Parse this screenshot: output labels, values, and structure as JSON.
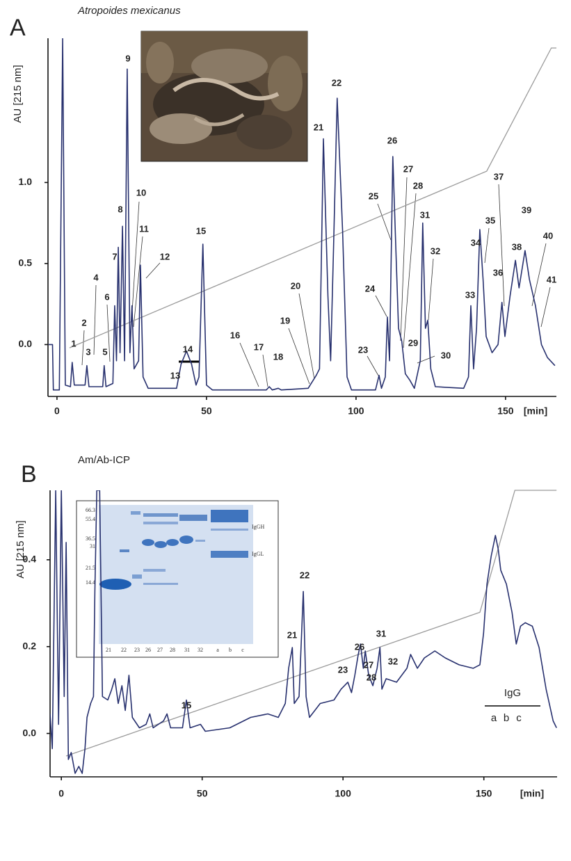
{
  "chart_data": [
    {
      "type": "line",
      "panel": "A",
      "title": "Atropoides mexicanus",
      "ylabel": "AU [215 nm]",
      "xlabel": "[min]",
      "color": "#27306e",
      "x": [
        -2.8,
        -1.5,
        -1.2,
        0.8,
        1.9,
        2.8,
        4.5,
        5.1,
        5.8,
        9.4,
        10,
        10.7,
        15.3,
        15.8,
        16.4,
        18.7,
        19.3,
        19.9,
        20.5,
        21.1,
        21.9,
        22.6,
        23.5,
        24.4,
        25.1,
        25.8,
        27.3,
        27.9,
        28.8,
        30.5,
        40,
        41.5,
        43.3,
        45,
        46.5,
        47.5,
        48.8,
        50,
        52,
        70,
        71,
        72,
        74,
        75,
        84,
        86.7,
        87.8,
        89.1,
        90.6,
        91.5,
        92.5,
        93.7,
        95.5,
        97,
        98.5,
        106.5,
        107.7,
        108.5,
        109.8,
        110.5,
        111.2,
        112.3,
        113.3,
        114.2,
        115.3,
        116.5,
        118,
        119.5,
        121.5,
        122.3,
        123.2,
        124,
        125,
        126.5,
        136,
        137.6,
        138.4,
        139.3,
        140.3,
        141.4,
        142.5,
        143.5,
        145.5,
        147.5,
        148.8,
        149.8,
        151.5,
        153.3,
        154.5,
        156.5,
        158,
        160,
        162,
        164,
        166.5
      ],
      "values": [
        0,
        0,
        -0.28,
        -0.28,
        1.89,
        -0.25,
        -0.26,
        -0.11,
        -0.25,
        -0.25,
        -0.13,
        -0.26,
        -0.26,
        -0.13,
        -0.26,
        -0.24,
        0.24,
        -0.1,
        0.6,
        -0.05,
        0.73,
        -0.1,
        1.7,
        -0.05,
        0.24,
        -0.15,
        -0.1,
        0.49,
        -0.2,
        -0.27,
        -0.27,
        -0.12,
        -0.04,
        -0.12,
        -0.25,
        -0.2,
        0.62,
        -0.25,
        -0.28,
        -0.28,
        -0.26,
        -0.28,
        -0.27,
        -0.28,
        -0.27,
        -0.19,
        -0.15,
        1.27,
        0.3,
        -0.1,
        0.6,
        1.52,
        0.7,
        -0.2,
        -0.28,
        -0.28,
        -0.19,
        -0.27,
        -0.2,
        0.17,
        -0.1,
        1.16,
        0.6,
        0.1,
        0.02,
        -0.18,
        -0.22,
        -0.27,
        -0.1,
        0.75,
        0.1,
        0.15,
        -0.15,
        -0.26,
        -0.27,
        -0.2,
        0.24,
        -0.15,
        0.1,
        0.71,
        0.4,
        0.05,
        -0.05,
        0,
        0.26,
        0.05,
        0.3,
        0.52,
        0.35,
        0.58,
        0.4,
        0.24,
        0,
        -0.08,
        -0.13
      ],
      "gradient": {
        "x": [
          4.2,
          143.7,
          165.3,
          167
        ],
        "values": [
          -0.02,
          1.07,
          1.83,
          1.83
        ]
      },
      "xlim": [
        -3,
        167
      ],
      "ylim": [
        -0.32,
        1.89
      ],
      "xticks": [
        0,
        50,
        100,
        150
      ],
      "yticks": [
        {
          "value": 0,
          "label": "0.0"
        },
        {
          "value": 0.5,
          "label": "0.5"
        },
        {
          "value": 1,
          "label": "1.0"
        }
      ],
      "annotations": [
        "1",
        "2",
        "3",
        "4",
        "5",
        "6",
        "7",
        "8",
        "9",
        "10",
        "11",
        "12",
        "13",
        "14",
        "15",
        "16",
        "17",
        "18",
        "19",
        "20",
        "21",
        "22",
        "23",
        "24",
        "25",
        "26",
        "27",
        "28",
        "29",
        "30",
        "31",
        "32",
        "33",
        "34",
        "35",
        "36",
        "37",
        "38",
        "39",
        "40",
        "41"
      ]
    },
    {
      "type": "line",
      "panel": "B",
      "title": "Am/Ab-ICP",
      "ylabel": "AU [215 nm]",
      "xlabel": "[min]",
      "color": "#27306e",
      "x": [
        -4,
        -3.2,
        -2,
        -1,
        0,
        1,
        1.7,
        2.5,
        3.5,
        4.9,
        6.2,
        7.4,
        8.4,
        9.1,
        10.4,
        11.4,
        11.9,
        12.6,
        13.6,
        14.6,
        16.5,
        17.8,
        19,
        20.2,
        21.5,
        22.7,
        24,
        25.2,
        27.7,
        30.1,
        31.4,
        32.6,
        36.3,
        37.5,
        38.8,
        43,
        44.4,
        45.7,
        49.4,
        51.1,
        59.8,
        67.2,
        73.3,
        77,
        79.5,
        80.7,
        82,
        82.7,
        84.4,
        85.9,
        86.9,
        88.1,
        91.9,
        96.8,
        99.3,
        101.7,
        103,
        104.2,
        105.4,
        106.2,
        107.2,
        107.9,
        109.1,
        110.6,
        112.1,
        113.1,
        113.8,
        115.3,
        119,
        122.7,
        124,
        126.4,
        128.9,
        132.6,
        136.3,
        141.2,
        146.2,
        148.6,
        149.9,
        151.1,
        152.6,
        154.1,
        155.1,
        156,
        158,
        160,
        161.5,
        163,
        164.7,
        167.2,
        169.6,
        172.1,
        174.6,
        175.8
      ],
      "values": [
        0.045,
        -0.035,
        0.56,
        0.021,
        0.56,
        0.085,
        0.44,
        -0.06,
        -0.044,
        -0.092,
        -0.076,
        -0.092,
        -0.035,
        0.037,
        0.069,
        0.085,
        0.327,
        0.56,
        0.56,
        0.085,
        0.077,
        0.1,
        0.126,
        0.069,
        0.11,
        0.053,
        0.134,
        0.037,
        0.013,
        0.021,
        0.045,
        0.013,
        0.029,
        0.045,
        0.013,
        0.013,
        0.077,
        0.013,
        0.021,
        0.005,
        0.013,
        0.037,
        0.045,
        0.037,
        0.069,
        0.15,
        0.198,
        0.069,
        0.085,
        0.327,
        0.085,
        0.037,
        0.069,
        0.077,
        0.102,
        0.118,
        0.094,
        0.134,
        0.182,
        0.206,
        0.15,
        0.19,
        0.134,
        0.11,
        0.15,
        0.198,
        0.102,
        0.126,
        0.118,
        0.15,
        0.182,
        0.15,
        0.174,
        0.19,
        0.174,
        0.158,
        0.15,
        0.158,
        0.231,
        0.344,
        0.408,
        0.456,
        0.424,
        0.376,
        0.344,
        0.279,
        0.206,
        0.247,
        0.255,
        0.247,
        0.198,
        0.102,
        0.029,
        0.013
      ],
      "gradient": {
        "x": [
          1.7,
          148.6,
          161,
          175.8
        ],
        "values": [
          -0.052,
          0.279,
          0.56,
          0.56
        ]
      },
      "xlim": [
        -4,
        176
      ],
      "ylim": [
        -0.1,
        0.56
      ],
      "xticks": [
        0,
        50,
        100,
        150
      ],
      "yticks": [
        {
          "value": 0,
          "label": "0.0"
        },
        {
          "value": 0.2,
          "label": "0.2"
        },
        {
          "value": 0.4,
          "label": "0.4"
        }
      ],
      "annotations": [
        "15",
        "21",
        "22",
        "23",
        "26",
        "27",
        "28",
        "31",
        "32"
      ],
      "fraction_label": "IgG",
      "fractions": [
        "a",
        "b",
        "c"
      ],
      "inset": {
        "mw_markers": [
          "66.3",
          "55.4",
          "36.5",
          "31",
          "21.5",
          "14.4"
        ],
        "lanes": [
          "21",
          "22",
          "23",
          "26",
          "27",
          "28",
          "31",
          "32",
          "a",
          "b",
          "c"
        ],
        "bands": [
          "IgGH",
          "IgGL"
        ]
      }
    }
  ]
}
